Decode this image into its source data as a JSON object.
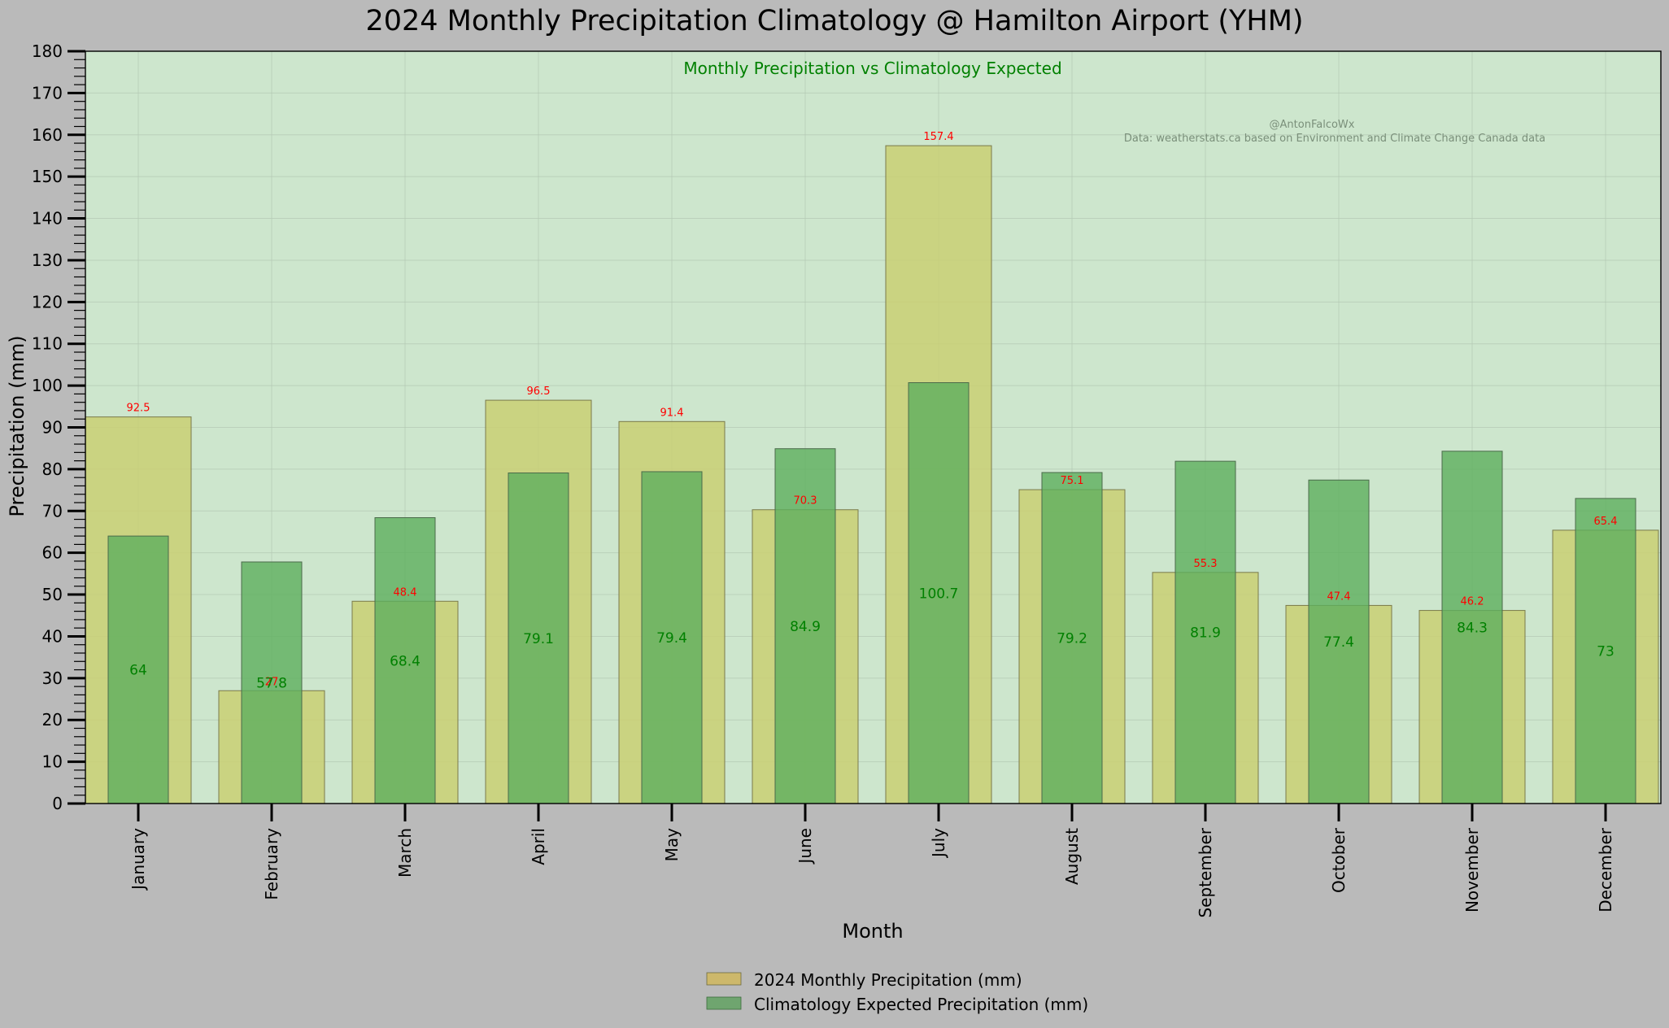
{
  "chart_data": {
    "type": "bar",
    "title": "2024 Monthly Precipitation Climatology @ Hamilton Airport (YHM)",
    "subtitle": "Monthly Precipitation vs Climatology Expected",
    "credit_author": "@AntonFalcoWx",
    "credit_source": "Data: weatherstats.ca based on Environment and Climate Change Canada data",
    "xlabel": "Month",
    "ylabel": "Precipitation (mm)",
    "ylim": [
      0,
      180
    ],
    "yticks": [
      0,
      10,
      20,
      30,
      40,
      50,
      60,
      70,
      80,
      90,
      100,
      110,
      120,
      130,
      140,
      150,
      160,
      170,
      180
    ],
    "grid": true,
    "legend_position": "bottom-center",
    "categories": [
      "January",
      "February",
      "March",
      "April",
      "May",
      "June",
      "July",
      "August",
      "September",
      "October",
      "November",
      "December"
    ],
    "series": [
      {
        "name": "2024 Monthly Precipitation (mm)",
        "values": [
          92.5,
          27,
          48.4,
          96.5,
          91.4,
          70.3,
          157.4,
          75.1,
          55.3,
          47.4,
          46.2,
          65.4
        ],
        "labels": [
          "92.5",
          "27",
          "48.4",
          "96.5",
          "91.4",
          "70.3",
          "157.4",
          "75.1",
          "55.3",
          "47.4",
          "46.2",
          "65.4"
        ],
        "color": "#c9cf73",
        "legend_color": "#cdb86b",
        "label_color": "#ff0000"
      },
      {
        "name": "Climatology Expected Precipitation (mm)",
        "values": [
          64,
          57.8,
          68.4,
          79.1,
          79.4,
          84.9,
          100.7,
          79.2,
          81.9,
          77.4,
          84.3,
          73
        ],
        "labels": [
          "64",
          "57.8",
          "68.4",
          "79.1",
          "79.4",
          "84.9",
          "100.7",
          "79.2",
          "81.9",
          "77.4",
          "84.3",
          "73"
        ],
        "color": "#5eaf5e",
        "legend_color": "#6fa56f",
        "label_color": "#008000"
      }
    ],
    "colors": {
      "plot_background": "#cde6cd",
      "figure_background": "#bababa",
      "subtitle": "#008000",
      "credit": "#7a8f7a"
    }
  }
}
